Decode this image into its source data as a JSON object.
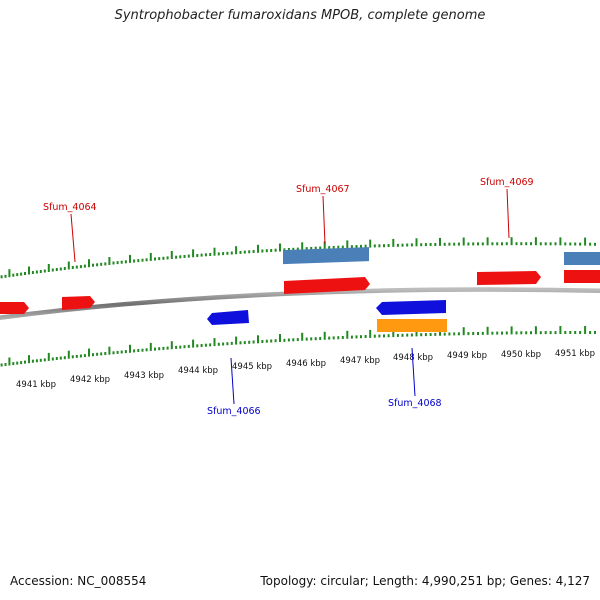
{
  "title": "Syntrophobacter fumaroxidans MPOB, complete genome",
  "footer": {
    "accession": "Accession: NC_008554",
    "topology": "Topology: circular; Length: 4,990,251 bp; Genes: 4,127"
  },
  "colors": {
    "forward_gene": "#ee1111",
    "reverse_gene": "#1010dd",
    "blue_feature": "#4a7fb8",
    "orange_feature": "#ff9a10",
    "tick": "#228822",
    "backbone": "#8a8a8a",
    "label_forward": "#cc0000",
    "label_reverse": "#0000cc"
  },
  "scale_labels": [
    "4941 kbp",
    "4942 kbp",
    "4943 kbp",
    "4944 kbp",
    "4945 kbp",
    "4946 kbp",
    "4947 kbp",
    "4948 kbp",
    "4949 kbp",
    "4950 kbp",
    "4951 kbp"
  ],
  "gene_labels": [
    {
      "name": "Sfum_4064",
      "strand": "forward"
    },
    {
      "name": "Sfum_4067",
      "strand": "forward"
    },
    {
      "name": "Sfum_4069",
      "strand": "forward"
    },
    {
      "name": "Sfum_4066",
      "strand": "reverse"
    },
    {
      "name": "Sfum_4068",
      "strand": "reverse"
    }
  ]
}
